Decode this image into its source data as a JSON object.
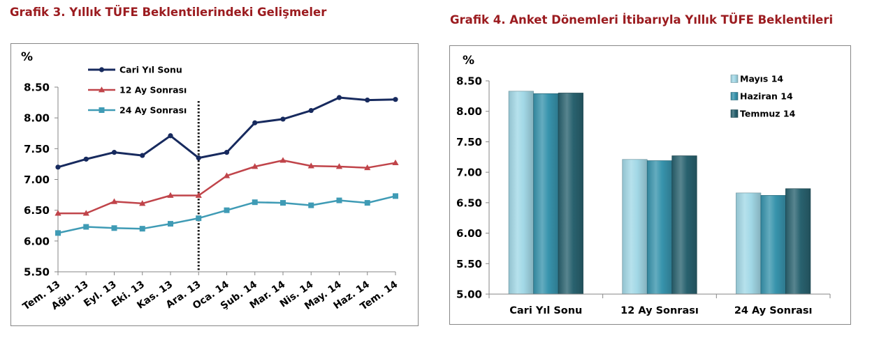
{
  "chart_data": [
    {
      "type": "line",
      "title": "Grafik 3. Yıllık TÜFE Beklentilerindeki Gelişmeler",
      "ylabel": "%",
      "categories": [
        "Tem. 13",
        "Ağu. 13",
        "Eyl. 13",
        "Eki. 13",
        "Kas. 13",
        "Ara. 13",
        "Oca. 14",
        "Şub. 14",
        "Mar. 14",
        "Nis. 14",
        "May. 14",
        "Haz. 14",
        "Tem. 14"
      ],
      "yticks": [
        "8.50",
        "8.00",
        "7.50",
        "7.00",
        "6.50",
        "6.00",
        "5.50"
      ],
      "ylim": [
        5.5,
        8.5
      ],
      "grid": false,
      "legend": "top-left",
      "vertical_marker": {
        "at": "Ara. 13",
        "line_style": "dotted",
        "color": "#1a1a1a"
      },
      "series": [
        {
          "name": "Cari Yıl Sonu",
          "marker": "circle",
          "color": "#172a5e",
          "values": [
            7.2,
            7.33,
            7.44,
            7.39,
            7.71,
            7.35,
            7.44,
            7.92,
            7.98,
            8.12,
            8.33,
            8.29,
            8.3
          ]
        },
        {
          "name": "12 Ay Sonrası",
          "marker": "triangle",
          "color": "#c0444a",
          "values": [
            6.45,
            6.45,
            6.64,
            6.61,
            6.74,
            6.74,
            7.06,
            7.21,
            7.31,
            7.22,
            7.21,
            7.19,
            7.27
          ]
        },
        {
          "name": "24 Ay Sonrası",
          "marker": "square",
          "color": "#3f9bb5",
          "values": [
            6.13,
            6.23,
            6.21,
            6.2,
            6.28,
            6.37,
            6.5,
            6.63,
            6.62,
            6.58,
            6.66,
            6.62,
            6.73
          ]
        }
      ]
    },
    {
      "type": "bar",
      "title": "Grafik 4. Anket Dönemleri İtibarıyla Yıllık TÜFE Beklentileri",
      "ylabel": "%",
      "categories": [
        "Cari Yıl Sonu",
        "12 Ay Sonrası",
        "24 Ay Sonrası"
      ],
      "yticks": [
        "8.50",
        "8.00",
        "7.50",
        "7.00",
        "6.50",
        "6.00",
        "5.50",
        "5.00"
      ],
      "ylim": [
        5.0,
        8.5
      ],
      "grid": false,
      "legend": "top-right",
      "series": [
        {
          "name": "Mayıs 14",
          "color": "#a2d8e6",
          "values": [
            8.33,
            7.21,
            6.66
          ]
        },
        {
          "name": "Haziran 14",
          "color": "#3894ad",
          "values": [
            8.29,
            7.19,
            6.62
          ]
        },
        {
          "name": "Temmuz 14",
          "color": "#29626f",
          "values": [
            8.3,
            7.27,
            6.73
          ]
        }
      ]
    }
  ]
}
